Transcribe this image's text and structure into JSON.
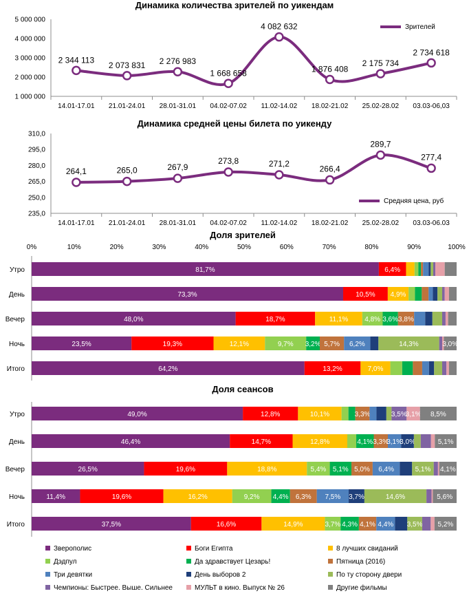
{
  "chart_data": [
    {
      "type": "line",
      "title": "Динамика количества зрителей по уикендам",
      "categories": [
        "14.01-17.01",
        "21.01-24.01",
        "28.01-31.01",
        "04.02-07.02",
        "11.02-14.02",
        "18.02-21.02",
        "25.02-28.02",
        "03.03-06,03"
      ],
      "series": [
        {
          "name": "Зрителей",
          "values": [
            2344113,
            2073831,
            2276983,
            1668658,
            4082632,
            1876408,
            2175734,
            2734618
          ]
        }
      ],
      "value_labels": [
        "2 344 113",
        "2 073 831",
        "2 276 983",
        "1 668 658",
        "4 082 632",
        "1 876 408",
        "2 175 734",
        "2 734 618"
      ],
      "yticks": [
        "5 000 000",
        "4 000 000",
        "3 000 000",
        "2 000 000",
        "1 000 000"
      ],
      "ylim": [
        1000000,
        5000000
      ],
      "legend_position": "top-right",
      "color": "#7B2C7E"
    },
    {
      "type": "line",
      "title": "Динамика средней цены билета по уикенду",
      "categories": [
        "14.01-17.01",
        "21.01-24.01",
        "28.01-31.01",
        "04.02-07.02",
        "11.02-14.02",
        "18.02-21.02",
        "25.02-28.02",
        "03.03-06.03"
      ],
      "series": [
        {
          "name": "Средняя цена, руб",
          "values": [
            264.1,
            265.0,
            267.9,
            273.8,
            271.2,
            266.4,
            289.7,
            277.4
          ]
        }
      ],
      "value_labels": [
        "264,1",
        "265,0",
        "267,9",
        "273,8",
        "271,2",
        "266,4",
        "289,7",
        "277,4"
      ],
      "yticks": [
        "310,0",
        "295,0",
        "280,0",
        "265,0",
        "250,0",
        "235,0"
      ],
      "ylim": [
        235,
        310
      ],
      "legend_position": "bottom-right",
      "color": "#7B2C7E"
    },
    {
      "type": "bar",
      "orientation": "horizontal-stacked-100",
      "title": "Доля зрителей",
      "xticks": [
        "0%",
        "10%",
        "20%",
        "30%",
        "40%",
        "50%",
        "60%",
        "70%",
        "80%",
        "90%",
        "100%"
      ],
      "categories": [
        "Утро",
        "День",
        "Вечер",
        "Ночь",
        "Итого"
      ],
      "rows": [
        {
          "label": "Утро",
          "values": [
            81.7,
            6.4,
            2.0,
            0.9,
            0.6,
            0.5,
            1.3,
            0.5,
            0.6,
            0.5,
            2.2,
            2.8
          ],
          "labels": [
            "81,7%",
            "6,4%",
            "",
            "",
            "",
            "",
            "",
            "",
            "",
            "",
            "",
            ""
          ]
        },
        {
          "label": "День",
          "values": [
            73.3,
            10.5,
            4.9,
            1.5,
            1.6,
            1.6,
            1.0,
            1.1,
            1.1,
            0.6,
            1.0,
            1.8
          ],
          "labels": [
            "73,3%",
            "10,5%",
            "4,9%",
            "",
            "",
            "",
            "",
            "",
            "",
            "",
            "",
            ""
          ]
        },
        {
          "label": "Вечер",
          "values": [
            48.0,
            18.7,
            11.1,
            4.8,
            3.6,
            3.8,
            2.6,
            1.7,
            2.3,
            0.8,
            0.6,
            2.0
          ],
          "labels": [
            "48,0%",
            "18,7%",
            "11,1%",
            "4,8%",
            "3,6%",
            "3,8%",
            "",
            "",
            "",
            "",
            "",
            ""
          ]
        },
        {
          "label": "Ночь",
          "values": [
            23.5,
            19.3,
            12.1,
            9.7,
            3.2,
            5.7,
            6.2,
            1.9,
            14.3,
            0.7,
            0.4,
            3.0
          ],
          "labels": [
            "23,5%",
            "19,3%",
            "12,1%",
            "9,7%",
            "3,2%",
            "5,7%",
            "6,2%",
            "",
            "14,3%",
            "",
            "",
            "3,0%"
          ]
        },
        {
          "label": "Итого",
          "values": [
            64.2,
            13.2,
            7.0,
            2.8,
            2.5,
            2.2,
            1.6,
            1.2,
            1.9,
            1.0,
            0.6,
            1.8
          ],
          "labels": [
            "64,2%",
            "13,2%",
            "7,0%",
            "",
            "",
            "",
            "",
            "",
            "",
            "",
            "",
            ""
          ]
        }
      ]
    },
    {
      "type": "bar",
      "orientation": "horizontal-stacked-100",
      "title": "Доля сеансов",
      "categories": [
        "Утро",
        "День",
        "Вечер",
        "Ночь",
        "Итого"
      ],
      "rows": [
        {
          "label": "Утро",
          "values": [
            49.0,
            12.8,
            10.1,
            1.6,
            1.6,
            3.3,
            1.6,
            2.3,
            1.2,
            3.5,
            3.1,
            8.5
          ],
          "labels": [
            "49,0%",
            "12,8%",
            "10,1%",
            "",
            "",
            "3,3%",
            "",
            "",
            "",
            "3,5%",
            "3,1%",
            "8,5%"
          ]
        },
        {
          "label": "День",
          "values": [
            46.4,
            14.7,
            12.8,
            2.1,
            4.1,
            3.3,
            3.1,
            3.0,
            1.6,
            2.4,
            0.9,
            5.1
          ],
          "labels": [
            "46,4%",
            "14,7%",
            "12,8%",
            "",
            "4,1%",
            "3,3%",
            "3,1%",
            "3,0%",
            "",
            "",
            "",
            "5,1%"
          ]
        },
        {
          "label": "Вечер",
          "values": [
            26.5,
            19.6,
            18.8,
            5.4,
            5.1,
            5.0,
            6.4,
            2.9,
            5.1,
            1.0,
            0.3,
            4.1
          ],
          "labels": [
            "26,5%",
            "19,6%",
            "18,8%",
            "5,4%",
            "5,1%",
            "5,0%",
            "6,4%",
            "",
            "5,1%",
            "",
            "",
            "4,1%"
          ]
        },
        {
          "label": "Ночь",
          "values": [
            11.4,
            19.6,
            16.2,
            9.2,
            4.4,
            6.3,
            7.5,
            3.7,
            14.6,
            1.2,
            0.3,
            5.6
          ],
          "labels": [
            "11,4%",
            "19,6%",
            "16,2%",
            "9,2%",
            "4,4%",
            "6,3%",
            "7,5%",
            "3,7%",
            "14,6%",
            "",
            "",
            "5,6%"
          ]
        },
        {
          "label": "Итого",
          "values": [
            37.5,
            16.6,
            14.9,
            3.7,
            4.3,
            4.1,
            4.4,
            2.9,
            3.5,
            2.0,
            0.9,
            5.2
          ],
          "labels": [
            "37,5%",
            "16,6%",
            "14,9%",
            "3,7%",
            "4,3%",
            "4,1%",
            "4,4%",
            "",
            "3,5%",
            "",
            "",
            "5,2%"
          ]
        }
      ]
    }
  ],
  "legend": [
    {
      "name": "Зверополис",
      "color": "#7B2C7E",
      "text_color": "#FFFFFF"
    },
    {
      "name": "Боги Египта",
      "color": "#FF0000",
      "text_color": "#FFFFFF"
    },
    {
      "name": "8 лучших свиданий",
      "color": "#FFC000",
      "text_color": "#FFFFFF"
    },
    {
      "name": "Дэдпул",
      "color": "#92D050",
      "text_color": "#FFFFFF"
    },
    {
      "name": "Да здравствует Цезарь!",
      "color": "#00B050",
      "text_color": "#FFFFFF"
    },
    {
      "name": "Пятница (2016)",
      "color": "#C0733C",
      "text_color": "#FFFFFF"
    },
    {
      "name": "Три девятки",
      "color": "#4F81BD",
      "text_color": "#FFFFFF"
    },
    {
      "name": "День выборов 2",
      "color": "#1F3F7A",
      "text_color": "#FFFFFF"
    },
    {
      "name": "По ту сторону двери",
      "color": "#9BBB59",
      "text_color": "#FFFFFF"
    },
    {
      "name": "Чемпионы: Быстрее. Выше. Сильнее",
      "color": "#8064A2",
      "text_color": "#FFFFFF"
    },
    {
      "name": "МУЛЬТ в кино. Выпуск № 26",
      "color": "#E6A0A8",
      "text_color": "#FFFFFF"
    },
    {
      "name": "Другие фильмы",
      "color": "#808080",
      "text_color": "#FFFFFF"
    }
  ]
}
